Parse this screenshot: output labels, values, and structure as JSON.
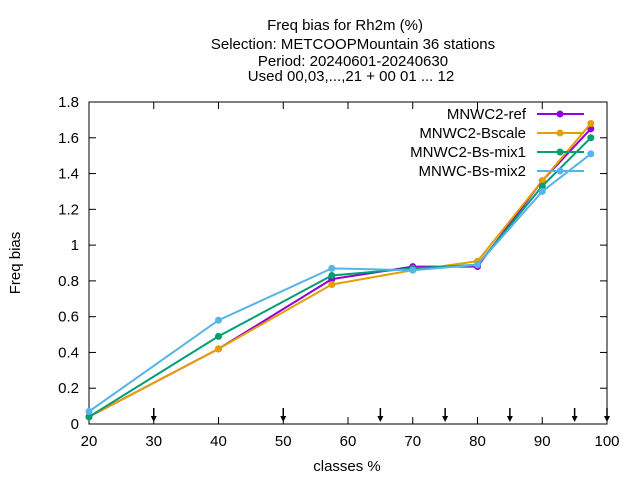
{
  "chart_data": {
    "type": "line",
    "title_lines": [
      "Freq bias  for Rh2m (%)",
      "Selection: METCOOPMountain     36 stations",
      "Period: 20240601-20240630",
      "Used 00,03,...,21 + 00 01 ... 12"
    ],
    "xlabel": "classes %",
    "ylabel": "Freq bias",
    "xlim": [
      20,
      100
    ],
    "ylim": [
      0,
      1.8
    ],
    "x_ticks": [
      "20",
      "30",
      "40",
      "50",
      "60",
      "70",
      "80",
      "90",
      "100"
    ],
    "y_ticks": [
      "0",
      "0.2",
      "0.4",
      "0.6",
      "0.8",
      "1",
      "1.2",
      "1.4",
      "1.6",
      "1.8"
    ],
    "class_markers_x": [
      30,
      50,
      65,
      75,
      85,
      95,
      100
    ],
    "x": [
      20,
      40,
      57.5,
      70,
      80,
      90,
      97.5
    ],
    "legend_position": "top-right",
    "series": [
      {
        "name": "MNWC2-ref",
        "color": "#9400d3",
        "marker": "circle",
        "values": [
          0.04,
          0.42,
          0.81,
          0.88,
          0.88,
          1.36,
          1.65
        ]
      },
      {
        "name": "MNWC2-Bscale",
        "color": "#e69f00",
        "marker": "circle",
        "values": [
          0.04,
          0.42,
          0.78,
          0.86,
          0.91,
          1.36,
          1.68
        ]
      },
      {
        "name": "MNWC2-Bs-mix1",
        "color": "#009e73",
        "marker": "circle",
        "values": [
          0.04,
          0.49,
          0.83,
          0.87,
          0.89,
          1.33,
          1.6
        ]
      },
      {
        "name": "MNWC-Bs-mix2",
        "color": "#56b4e9",
        "marker": "circle",
        "values": [
          0.07,
          0.58,
          0.87,
          0.86,
          0.89,
          1.3,
          1.51
        ]
      }
    ]
  }
}
